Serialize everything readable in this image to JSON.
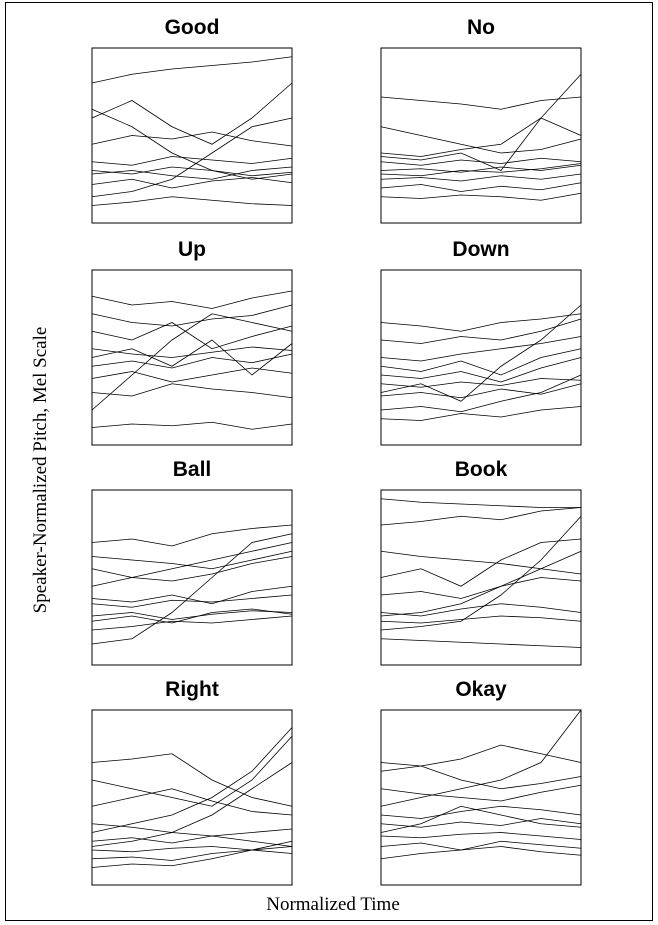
{
  "y_label": "Speaker-Normalized Pitch, Mel Scale",
  "x_label": "Normalized Time",
  "chart_data": [
    {
      "type": "line",
      "title": "Good",
      "x": [
        0,
        0.2,
        0.4,
        0.6,
        0.8,
        1
      ],
      "xlim": [
        0,
        1
      ],
      "ylim": [
        0,
        100
      ],
      "color": "#000000",
      "series": [
        {
          "values": [
            30,
            28,
            32,
            30,
            27,
            29
          ]
        },
        {
          "values": [
            22,
            25,
            20,
            24,
            26,
            23
          ]
        },
        {
          "values": [
            35,
            33,
            38,
            36,
            34,
            37
          ]
        },
        {
          "values": [
            60,
            70,
            55,
            45,
            60,
            80
          ]
        },
        {
          "values": [
            80,
            85,
            88,
            90,
            92,
            95
          ]
        },
        {
          "values": [
            15,
            18,
            25,
            40,
            55,
            60
          ]
        },
        {
          "values": [
            45,
            50,
            48,
            52,
            47,
            44
          ]
        },
        {
          "values": [
            28,
            30,
            27,
            25,
            30,
            32
          ]
        },
        {
          "values": [
            65,
            55,
            40,
            30,
            25,
            28
          ]
        },
        {
          "values": [
            10,
            12,
            15,
            13,
            11,
            10
          ]
        }
      ]
    },
    {
      "type": "line",
      "title": "No",
      "x": [
        0,
        0.2,
        0.4,
        0.6,
        0.8,
        1
      ],
      "xlim": [
        0,
        1
      ],
      "ylim": [
        0,
        100
      ],
      "color": "#000000",
      "series": [
        {
          "values": [
            30,
            31,
            29,
            32,
            30,
            33
          ]
        },
        {
          "values": [
            25,
            26,
            24,
            27,
            25,
            28
          ]
        },
        {
          "values": [
            35,
            33,
            36,
            34,
            37,
            35
          ]
        },
        {
          "values": [
            72,
            70,
            68,
            65,
            70,
            72
          ]
        },
        {
          "values": [
            20,
            22,
            18,
            21,
            19,
            23
          ]
        },
        {
          "values": [
            40,
            38,
            42,
            45,
            60,
            85
          ]
        },
        {
          "values": [
            55,
            50,
            45,
            40,
            42,
            48
          ]
        },
        {
          "values": [
            28,
            27,
            30,
            29,
            31,
            34
          ]
        },
        {
          "values": [
            15,
            14,
            16,
            15,
            13,
            17
          ]
        },
        {
          "values": [
            38,
            36,
            40,
            30,
            60,
            50
          ]
        }
      ]
    },
    {
      "type": "line",
      "title": "Up",
      "x": [
        0,
        0.2,
        0.4,
        0.6,
        0.8,
        1
      ],
      "xlim": [
        0,
        1
      ],
      "ylim": [
        0,
        100
      ],
      "color": "#000000",
      "series": [
        {
          "values": [
            55,
            52,
            50,
            53,
            56,
            54
          ]
        },
        {
          "values": [
            45,
            48,
            44,
            50,
            47,
            52
          ]
        },
        {
          "values": [
            85,
            80,
            82,
            78,
            84,
            88
          ]
        },
        {
          "values": [
            30,
            28,
            35,
            32,
            30,
            27
          ]
        },
        {
          "values": [
            65,
            60,
            70,
            55,
            62,
            68
          ]
        },
        {
          "values": [
            20,
            40,
            60,
            75,
            70,
            65
          ]
        },
        {
          "values": [
            10,
            12,
            11,
            13,
            9,
            12
          ]
        },
        {
          "values": [
            50,
            55,
            45,
            60,
            40,
            58
          ]
        },
        {
          "values": [
            75,
            70,
            68,
            72,
            74,
            80
          ]
        },
        {
          "values": [
            38,
            42,
            36,
            40,
            44,
            41
          ]
        }
      ]
    },
    {
      "type": "line",
      "title": "Down",
      "x": [
        0,
        0.2,
        0.4,
        0.6,
        0.8,
        1
      ],
      "xlim": [
        0,
        1
      ],
      "ylim": [
        0,
        100
      ],
      "color": "#000000",
      "series": [
        {
          "values": [
            35,
            33,
            36,
            34,
            38,
            37
          ]
        },
        {
          "values": [
            28,
            30,
            27,
            32,
            29,
            35
          ]
        },
        {
          "values": [
            60,
            58,
            62,
            60,
            65,
            72
          ]
        },
        {
          "values": [
            45,
            42,
            48,
            40,
            50,
            55
          ]
        },
        {
          "values": [
            20,
            22,
            19,
            25,
            30,
            40
          ]
        },
        {
          "values": [
            70,
            68,
            65,
            70,
            72,
            75
          ]
        },
        {
          "values": [
            30,
            35,
            25,
            45,
            60,
            80
          ]
        },
        {
          "values": [
            15,
            14,
            18,
            16,
            20,
            22
          ]
        },
        {
          "values": [
            40,
            38,
            42,
            36,
            44,
            50
          ]
        },
        {
          "values": [
            50,
            48,
            52,
            55,
            58,
            62
          ]
        }
      ]
    },
    {
      "type": "line",
      "title": "Ball",
      "x": [
        0,
        0.2,
        0.4,
        0.6,
        0.8,
        1
      ],
      "xlim": [
        0,
        1
      ],
      "ylim": [
        0,
        100
      ],
      "color": "#000000",
      "series": [
        {
          "values": [
            35,
            33,
            37,
            36,
            38,
            40
          ]
        },
        {
          "values": [
            28,
            30,
            26,
            29,
            31,
            30
          ]
        },
        {
          "values": [
            70,
            72,
            68,
            75,
            78,
            80
          ]
        },
        {
          "values": [
            45,
            50,
            55,
            60,
            65,
            70
          ]
        },
        {
          "values": [
            20,
            22,
            25,
            24,
            26,
            28
          ]
        },
        {
          "values": [
            55,
            50,
            48,
            52,
            58,
            62
          ]
        },
        {
          "values": [
            38,
            36,
            40,
            35,
            42,
            45
          ]
        },
        {
          "values": [
            12,
            15,
            30,
            50,
            70,
            75
          ]
        },
        {
          "values": [
            62,
            60,
            58,
            55,
            60,
            65
          ]
        },
        {
          "values": [
            25,
            28,
            24,
            30,
            32,
            29
          ]
        }
      ]
    },
    {
      "type": "line",
      "title": "Book",
      "x": [
        0,
        0.2,
        0.4,
        0.6,
        0.8,
        1
      ],
      "xlim": [
        0,
        1
      ],
      "ylim": [
        0,
        100
      ],
      "color": "#000000",
      "series": [
        {
          "values": [
            25,
            24,
            26,
            28,
            27,
            25
          ]
        },
        {
          "values": [
            95,
            93,
            92,
            91,
            90,
            90
          ]
        },
        {
          "values": [
            20,
            22,
            25,
            40,
            60,
            85
          ]
        },
        {
          "values": [
            80,
            82,
            85,
            83,
            88,
            90
          ]
        },
        {
          "values": [
            30,
            28,
            32,
            35,
            33,
            30
          ]
        },
        {
          "values": [
            50,
            55,
            45,
            60,
            70,
            72
          ]
        },
        {
          "values": [
            15,
            14,
            13,
            12,
            11,
            10
          ]
        },
        {
          "values": [
            40,
            42,
            38,
            45,
            50,
            48
          ]
        },
        {
          "values": [
            65,
            62,
            60,
            58,
            55,
            52
          ]
        },
        {
          "values": [
            28,
            30,
            35,
            45,
            55,
            65
          ]
        }
      ]
    },
    {
      "type": "line",
      "title": "Right",
      "x": [
        0,
        0.2,
        0.4,
        0.6,
        0.8,
        1
      ],
      "xlim": [
        0,
        1
      ],
      "ylim": [
        0,
        100
      ],
      "color": "#000000",
      "series": [
        {
          "values": [
            20,
            19,
            21,
            22,
            20,
            18
          ]
        },
        {
          "values": [
            25,
            27,
            24,
            28,
            30,
            32
          ]
        },
        {
          "values": [
            15,
            16,
            14,
            18,
            20,
            22
          ]
        },
        {
          "values": [
            70,
            72,
            75,
            60,
            50,
            45
          ]
        },
        {
          "values": [
            30,
            35,
            40,
            50,
            65,
            90
          ]
        },
        {
          "values": [
            45,
            50,
            55,
            48,
            42,
            40
          ]
        },
        {
          "values": [
            10,
            12,
            11,
            15,
            20,
            25
          ]
        },
        {
          "values": [
            60,
            55,
            50,
            45,
            60,
            85
          ]
        },
        {
          "values": [
            35,
            33,
            30,
            28,
            25,
            22
          ]
        },
        {
          "values": [
            22,
            25,
            30,
            40,
            55,
            70
          ]
        }
      ]
    },
    {
      "type": "line",
      "title": "Okay",
      "x": [
        0,
        0.2,
        0.4,
        0.6,
        0.8,
        1
      ],
      "xlim": [
        0,
        1
      ],
      "ylim": [
        0,
        100
      ],
      "color": "#000000",
      "series": [
        {
          "values": [
            28,
            27,
            29,
            30,
            28,
            26
          ]
        },
        {
          "values": [
            35,
            33,
            36,
            34,
            38,
            35
          ]
        },
        {
          "values": [
            22,
            24,
            20,
            25,
            23,
            21
          ]
        },
        {
          "values": [
            65,
            68,
            72,
            80,
            75,
            70
          ]
        },
        {
          "values": [
            45,
            50,
            55,
            60,
            70,
            100
          ]
        },
        {
          "values": [
            15,
            18,
            20,
            22,
            19,
            17
          ]
        },
        {
          "values": [
            55,
            52,
            50,
            48,
            53,
            57
          ]
        },
        {
          "values": [
            30,
            35,
            45,
            40,
            35,
            33
          ]
        },
        {
          "values": [
            70,
            68,
            60,
            55,
            58,
            62
          ]
        },
        {
          "values": [
            40,
            38,
            42,
            45,
            43,
            40
          ]
        }
      ]
    }
  ]
}
